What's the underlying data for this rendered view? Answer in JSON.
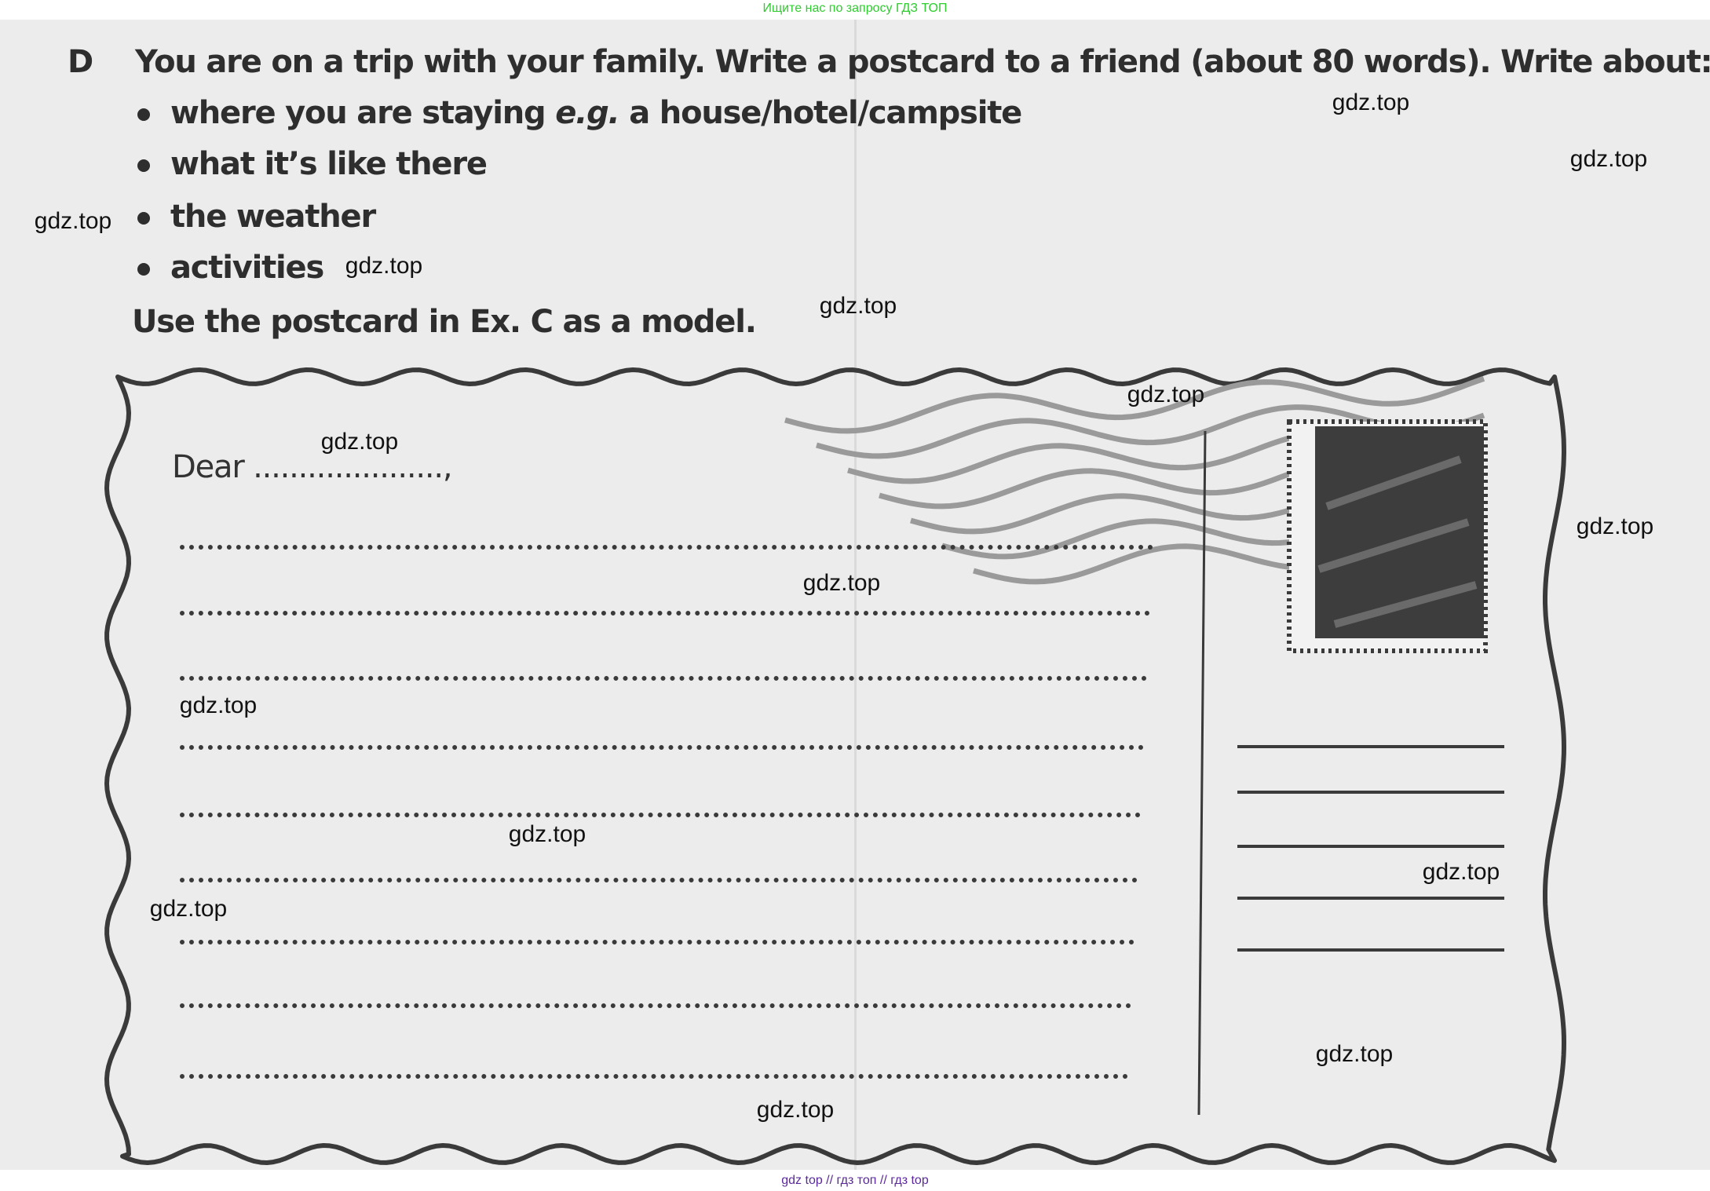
{
  "top_banner": {
    "text": "Ищите нас по запросу ГДЗ ТОП",
    "color": "#2ecc2e"
  },
  "exercise": {
    "letter": "D",
    "instruction": "You are on a trip with your family. Write a postcard to a friend (about 80 words). Write about:",
    "bullets": [
      {
        "before": "where you are staying ",
        "italic": "e.g.",
        "after": " a house/hotel/campsite"
      },
      {
        "before": "what it’s like there"
      },
      {
        "before": "the weather"
      },
      {
        "before": "activities"
      }
    ],
    "model_note": "Use the postcard in Ex. C as a model."
  },
  "postcard": {
    "greeting": "Dear .....................,",
    "writing_lines": 9,
    "address_lines": 5,
    "border_color": "#3a3a3a",
    "stamp_color": "#3d3d3d"
  },
  "watermark": "gdz.top",
  "bottom_banner": {
    "links": [
      "gdz top",
      "гдз топ",
      "гдз top"
    ],
    "separator": " // ",
    "color": "#5a2a9a"
  }
}
